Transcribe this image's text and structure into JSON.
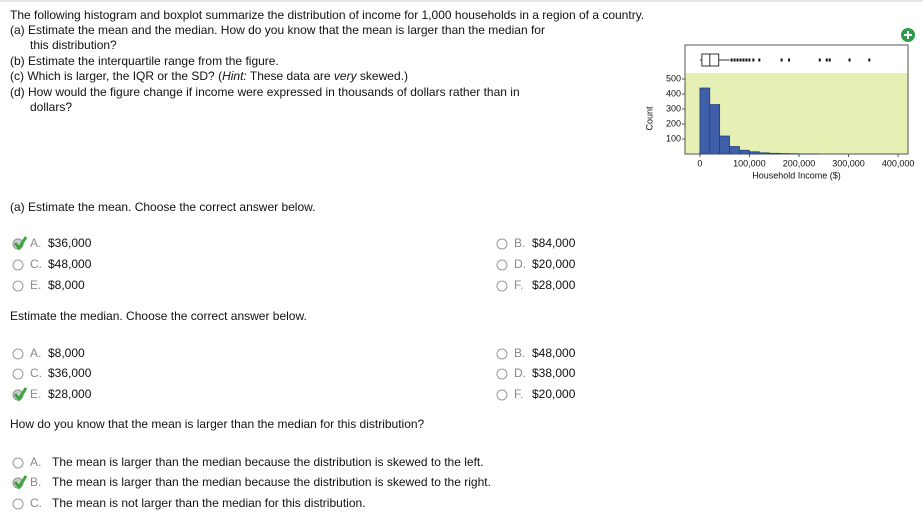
{
  "question": {
    "intro": "The following histogram and boxplot summarize the distribution of income for 1,000 households in a region of a country.",
    "a_line1": "(a) Estimate the mean and the median. How do you know that the mean is larger than the median for",
    "a_line2": "this distribution?",
    "b": "(b) Estimate the interquartile range from the figure.",
    "c": [
      "(c) Which is larger, the IQR or the SD? (",
      "Hint:",
      " These data are ",
      "very",
      " skewed.)"
    ],
    "d_line1": "(d) How would the figure change if income were expressed in thousands of dollars rather than in",
    "d_line2": "dollars?"
  },
  "chart_data": {
    "type": "histogram",
    "color": "#3f5fa8",
    "background": "#e6efb4",
    "bins": [
      0,
      20000,
      40000,
      60000,
      80000,
      100000,
      120000,
      140000,
      160000,
      180000,
      200000,
      220000,
      240000
    ],
    "values": [
      440,
      330,
      120,
      50,
      25,
      15,
      8,
      5,
      3,
      2,
      1,
      1
    ],
    "boxplot": {
      "min": 0,
      "q1": 4000,
      "median": 20000,
      "q3": 38000,
      "whisker_high": 60000,
      "outliers": [
        64000,
        70000,
        76000,
        82000,
        88000,
        94000,
        100000,
        108000,
        120000,
        165000,
        180000,
        242000,
        256000,
        262000,
        302000,
        342000
      ]
    },
    "xlim": [
      -30000,
      420000
    ],
    "ylim": [
      0,
      540
    ],
    "xticks": [
      0,
      {
        "value": 100000,
        "label": "100,000"
      },
      {
        "value": 200000,
        "label": "200,000"
      },
      {
        "value": 300000,
        "label": "300,000"
      },
      {
        "value": 400000,
        "label": "400,000"
      }
    ],
    "yticks": [
      100,
      200,
      300,
      400,
      500
    ],
    "x_label": "Household Income ($)",
    "y_label": "Count"
  },
  "parts": [
    {
      "prompt": "(a) Estimate the mean. Choose the correct answer below.",
      "columns": 2,
      "options": [
        {
          "letter": "A.",
          "text": "$36,000",
          "selected": true
        },
        {
          "letter": "B.",
          "text": "$84,000",
          "selected": false
        },
        {
          "letter": "C.",
          "text": "$48,000",
          "selected": false
        },
        {
          "letter": "D.",
          "text": "$20,000",
          "selected": false
        },
        {
          "letter": "E.",
          "text": "$8,000",
          "selected": false
        },
        {
          "letter": "F.",
          "text": "$28,000",
          "selected": false
        }
      ]
    },
    {
      "prompt": "Estimate the median. Choose the correct answer below.",
      "columns": 2,
      "options": [
        {
          "letter": "A.",
          "text": "$8,000",
          "selected": false
        },
        {
          "letter": "B.",
          "text": "$48,000",
          "selected": false
        },
        {
          "letter": "C.",
          "text": "$36,000",
          "selected": false
        },
        {
          "letter": "D.",
          "text": "$38,000",
          "selected": false
        },
        {
          "letter": "E.",
          "text": "$28,000",
          "selected": true
        },
        {
          "letter": "F.",
          "text": "$20,000",
          "selected": false
        }
      ]
    },
    {
      "prompt": "How do you know that the mean is larger than the median for this distribution?",
      "columns": 1,
      "options": [
        {
          "letter": "A.",
          "text": "The mean is larger than the median because the distribution is skewed to the left.",
          "selected": false
        },
        {
          "letter": "B.",
          "text": "The mean is larger than the median because the distribution is skewed to the right.",
          "selected": true
        },
        {
          "letter": "C.",
          "text": "The mean is not larger than the median for this distribution.",
          "selected": false
        }
      ]
    }
  ]
}
